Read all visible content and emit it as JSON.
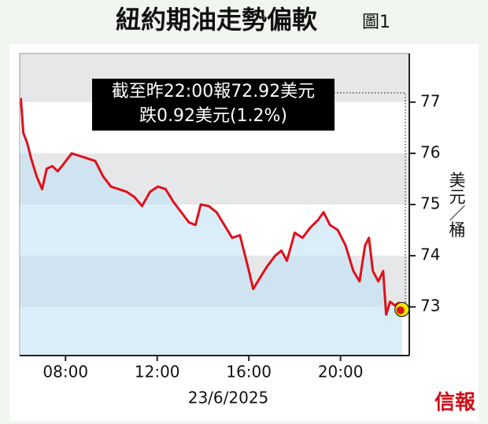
{
  "chart_data": {
    "type": "line",
    "title": "紐約期油走勢偏軟",
    "figure_label": "圖1",
    "y_label": "美元／桶",
    "x_label": "23/6/2025",
    "annotation": [
      "截至昨22:00報72.92美元",
      "跌0.92美元(1.2%)"
    ],
    "logo": "信報",
    "x": [
      6.05,
      6.16,
      6.33,
      6.5,
      6.74,
      6.98,
      7.18,
      7.42,
      7.66,
      7.93,
      8.27,
      8.61,
      8.96,
      9.3,
      9.64,
      9.98,
      10.32,
      10.66,
      11.0,
      11.34,
      11.69,
      12.03,
      12.37,
      12.71,
      13.05,
      13.39,
      13.67,
      13.9,
      14.25,
      14.59,
      14.93,
      15.27,
      15.61,
      15.95,
      16.19,
      16.46,
      16.81,
      17.15,
      17.42,
      17.66,
      18.0,
      18.34,
      18.68,
      19.02,
      19.26,
      19.54,
      19.88,
      20.22,
      20.56,
      20.83,
      21.07,
      21.24,
      21.41,
      21.65,
      21.86,
      21.99,
      22.16,
      22.37,
      22.54,
      22.68
    ],
    "series": [
      {
        "name": "紐約期油",
        "color": "#e0101a",
        "values": [
          77.08,
          76.4,
          76.2,
          75.9,
          75.55,
          75.3,
          75.7,
          75.75,
          75.65,
          75.8,
          76.0,
          75.95,
          75.9,
          75.85,
          75.55,
          75.35,
          75.3,
          75.25,
          75.15,
          74.97,
          75.25,
          75.35,
          75.3,
          75.05,
          74.85,
          74.65,
          74.6,
          75.0,
          74.97,
          74.85,
          74.6,
          74.35,
          74.4,
          73.8,
          73.35,
          73.55,
          73.8,
          74.0,
          74.1,
          73.9,
          74.45,
          74.35,
          74.55,
          74.7,
          74.85,
          74.6,
          74.5,
          74.2,
          73.7,
          73.5,
          74.2,
          74.35,
          73.7,
          73.5,
          73.7,
          72.85,
          73.1,
          73.03,
          73.08,
          72.95
        ]
      }
    ],
    "xlim": [
      6,
      23
    ],
    "xticks": [
      {
        "value": 8,
        "label": "08:00"
      },
      {
        "value": 12,
        "label": "12:00"
      },
      {
        "value": 16,
        "label": "16:00"
      },
      {
        "value": 20,
        "label": "20:00"
      }
    ],
    "ylim": [
      72.05,
      77.95
    ],
    "yticks": [
      73,
      74,
      75,
      76,
      77
    ],
    "grid": "bands"
  }
}
